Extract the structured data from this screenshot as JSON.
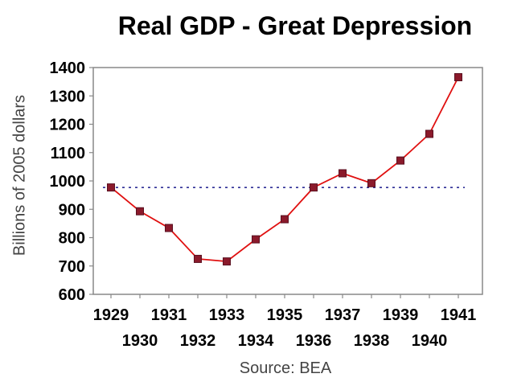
{
  "chart_data": {
    "type": "line",
    "title": "Real GDP - Great Depression",
    "xlabel": "",
    "ylabel": "Billions of 2005 dollars",
    "source": "Source: BEA",
    "x": [
      1929,
      1930,
      1931,
      1932,
      1933,
      1934,
      1935,
      1936,
      1937,
      1938,
      1939,
      1940,
      1941
    ],
    "x_tick_labels": [
      "1929",
      "1930",
      "1931",
      "1932",
      "1933",
      "1934",
      "1935",
      "1936",
      "1937",
      "1938",
      "1939",
      "1940",
      "1941"
    ],
    "series": [
      {
        "values": [
          977,
          893,
          834,
          725,
          716,
          794,
          865,
          977,
          1027,
          992,
          1072,
          1166,
          1366
        ],
        "color": "#e01010",
        "marker_color": "#8b1a2b"
      }
    ],
    "reference_line": {
      "value": 977,
      "color": "#1a1a8c",
      "style": "dotted"
    },
    "ylim": [
      600,
      1400
    ],
    "y_ticks": [
      600,
      700,
      800,
      900,
      1000,
      1100,
      1200,
      1300,
      1400
    ],
    "grid": false,
    "legend": "none"
  }
}
